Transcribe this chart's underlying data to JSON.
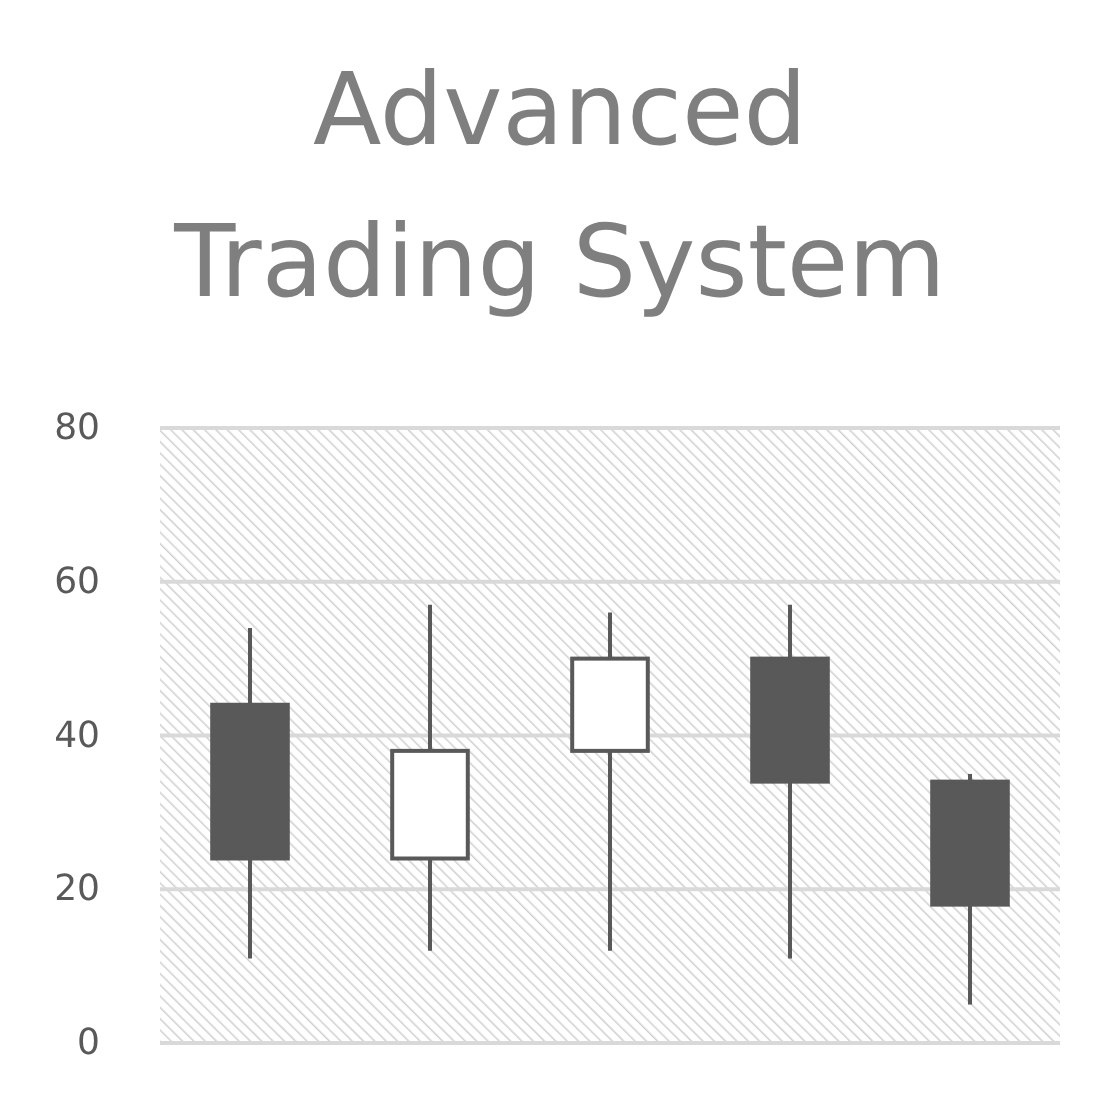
{
  "chart_data": {
    "type": "candlestick",
    "title": "Advanced Trading System",
    "categories": [
      null,
      null,
      null,
      null,
      null
    ],
    "ohlc": [
      [
        44,
        54,
        11,
        24
      ],
      [
        24,
        57,
        12,
        38
      ],
      [
        38,
        56,
        12,
        50
      ],
      [
        50,
        57,
        11,
        34
      ],
      [
        34,
        35,
        5,
        18
      ]
    ],
    "color": "#595959",
    "colors": [
      "#595959",
      "#ffffff",
      "#ffffff",
      "#595959",
      "#595959"
    ],
    "ylim": [
      0,
      80
    ],
    "yticks": [
      0,
      20,
      40,
      60,
      80
    ],
    "grid": "y"
  }
}
